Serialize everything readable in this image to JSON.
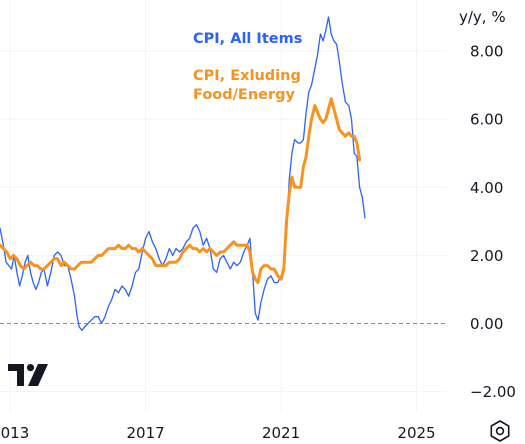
{
  "chart_data": {
    "type": "line",
    "y_unit_label": "y/y, %",
    "x_ticks": [
      {
        "label": "2013",
        "x": 2013.0
      },
      {
        "label": "2017",
        "x": 2017.0
      },
      {
        "label": "2021",
        "x": 2021.0
      },
      {
        "label": "2025",
        "x": 2025.0
      }
    ],
    "y_ticks": [
      {
        "label": "8.00",
        "y": 8
      },
      {
        "label": "6.00",
        "y": 6
      },
      {
        "label": "4.00",
        "y": 4
      },
      {
        "label": "2.00",
        "y": 2
      },
      {
        "label": "0.00",
        "y": 0
      },
      {
        "label": "−2.00",
        "y": -2
      }
    ],
    "xlim": [
      2012.7,
      2025.9
    ],
    "ylim": [
      -2.6,
      9.5
    ],
    "grid": true,
    "zero_line": "dashed",
    "legend": "top-center",
    "series": [
      {
        "name": "CPI, All Items",
        "color": "#2962ff",
        "points": [
          [
            2012.7,
            2.8
          ],
          [
            2012.8,
            2.3
          ],
          [
            2012.88,
            1.8
          ],
          [
            2012.96,
            1.7
          ],
          [
            2013.04,
            1.6
          ],
          [
            2013.12,
            2.0
          ],
          [
            2013.2,
            1.5
          ],
          [
            2013.28,
            1.1
          ],
          [
            2013.36,
            1.4
          ],
          [
            2013.44,
            1.8
          ],
          [
            2013.52,
            2.0
          ],
          [
            2013.6,
            1.5
          ],
          [
            2013.68,
            1.2
          ],
          [
            2013.76,
            1.0
          ],
          [
            2013.84,
            1.2
          ],
          [
            2013.92,
            1.5
          ],
          [
            2014.0,
            1.6
          ],
          [
            2014.1,
            1.1
          ],
          [
            2014.2,
            1.5
          ],
          [
            2014.3,
            2.0
          ],
          [
            2014.4,
            2.1
          ],
          [
            2014.5,
            2.0
          ],
          [
            2014.6,
            1.7
          ],
          [
            2014.7,
            1.7
          ],
          [
            2014.8,
            1.3
          ],
          [
            2014.9,
            0.8
          ],
          [
            2014.98,
            0.2
          ],
          [
            2015.04,
            -0.1
          ],
          [
            2015.12,
            -0.2
          ],
          [
            2015.2,
            -0.1
          ],
          [
            2015.3,
            0.0
          ],
          [
            2015.4,
            0.1
          ],
          [
            2015.5,
            0.2
          ],
          [
            2015.6,
            0.2
          ],
          [
            2015.7,
            0.0
          ],
          [
            2015.8,
            0.2
          ],
          [
            2015.9,
            0.5
          ],
          [
            2016.0,
            0.7
          ],
          [
            2016.1,
            1.0
          ],
          [
            2016.2,
            0.9
          ],
          [
            2016.3,
            1.1
          ],
          [
            2016.4,
            1.0
          ],
          [
            2016.5,
            0.8
          ],
          [
            2016.6,
            1.1
          ],
          [
            2016.7,
            1.5
          ],
          [
            2016.8,
            1.6
          ],
          [
            2016.9,
            2.1
          ],
          [
            2017.0,
            2.5
          ],
          [
            2017.1,
            2.7
          ],
          [
            2017.2,
            2.4
          ],
          [
            2017.3,
            2.2
          ],
          [
            2017.4,
            1.9
          ],
          [
            2017.5,
            1.7
          ],
          [
            2017.6,
            1.9
          ],
          [
            2017.7,
            2.2
          ],
          [
            2017.8,
            2.0
          ],
          [
            2017.9,
            2.2
          ],
          [
            2018.0,
            2.1
          ],
          [
            2018.1,
            2.2
          ],
          [
            2018.2,
            2.4
          ],
          [
            2018.3,
            2.5
          ],
          [
            2018.4,
            2.8
          ],
          [
            2018.5,
            2.9
          ],
          [
            2018.6,
            2.7
          ],
          [
            2018.7,
            2.3
          ],
          [
            2018.8,
            2.5
          ],
          [
            2018.9,
            2.2
          ],
          [
            2019.0,
            1.6
          ],
          [
            2019.1,
            1.5
          ],
          [
            2019.2,
            1.9
          ],
          [
            2019.3,
            2.0
          ],
          [
            2019.4,
            1.8
          ],
          [
            2019.5,
            1.6
          ],
          [
            2019.6,
            1.8
          ],
          [
            2019.7,
            1.7
          ],
          [
            2019.8,
            1.8
          ],
          [
            2019.9,
            2.1
          ],
          [
            2020.0,
            2.3
          ],
          [
            2020.08,
            2.5
          ],
          [
            2020.16,
            1.5
          ],
          [
            2020.24,
            0.3
          ],
          [
            2020.32,
            0.1
          ],
          [
            2020.4,
            0.6
          ],
          [
            2020.5,
            1.0
          ],
          [
            2020.6,
            1.3
          ],
          [
            2020.7,
            1.4
          ],
          [
            2020.8,
            1.2
          ],
          [
            2020.9,
            1.2
          ],
          [
            2021.0,
            1.4
          ],
          [
            2021.08,
            1.7
          ],
          [
            2021.16,
            2.6
          ],
          [
            2021.24,
            4.2
          ],
          [
            2021.32,
            5.0
          ],
          [
            2021.4,
            5.4
          ],
          [
            2021.5,
            5.3
          ],
          [
            2021.58,
            5.3
          ],
          [
            2021.66,
            5.4
          ],
          [
            2021.74,
            6.2
          ],
          [
            2021.82,
            6.8
          ],
          [
            2021.9,
            7.0
          ],
          [
            2022.0,
            7.5
          ],
          [
            2022.08,
            7.9
          ],
          [
            2022.16,
            8.5
          ],
          [
            2022.24,
            8.3
          ],
          [
            2022.32,
            8.6
          ],
          [
            2022.4,
            9.0
          ],
          [
            2022.48,
            8.5
          ],
          [
            2022.56,
            8.3
          ],
          [
            2022.64,
            8.2
          ],
          [
            2022.72,
            7.7
          ],
          [
            2022.8,
            7.1
          ],
          [
            2022.9,
            6.5
          ],
          [
            2023.0,
            6.4
          ],
          [
            2023.08,
            6.0
          ],
          [
            2023.16,
            5.0
          ],
          [
            2023.24,
            4.9
          ],
          [
            2023.32,
            4.0
          ],
          [
            2023.4,
            3.7
          ],
          [
            2023.48,
            3.1
          ]
        ]
      },
      {
        "name": "CPI, Exluding Food/Energy",
        "color": "#f7931e",
        "points": [
          [
            2012.7,
            2.3
          ],
          [
            2012.8,
            2.2
          ],
          [
            2012.9,
            2.1
          ],
          [
            2013.0,
            1.9
          ],
          [
            2013.1,
            2.0
          ],
          [
            2013.2,
            1.9
          ],
          [
            2013.3,
            1.7
          ],
          [
            2013.4,
            1.6
          ],
          [
            2013.5,
            1.7
          ],
          [
            2013.6,
            1.8
          ],
          [
            2013.7,
            1.7
          ],
          [
            2013.8,
            1.7
          ],
          [
            2013.9,
            1.6
          ],
          [
            2014.0,
            1.6
          ],
          [
            2014.1,
            1.7
          ],
          [
            2014.2,
            1.8
          ],
          [
            2014.3,
            1.9
          ],
          [
            2014.4,
            1.9
          ],
          [
            2014.5,
            1.7
          ],
          [
            2014.6,
            1.8
          ],
          [
            2014.7,
            1.7
          ],
          [
            2014.8,
            1.6
          ],
          [
            2014.9,
            1.6
          ],
          [
            2015.0,
            1.7
          ],
          [
            2015.1,
            1.8
          ],
          [
            2015.2,
            1.8
          ],
          [
            2015.3,
            1.8
          ],
          [
            2015.4,
            1.8
          ],
          [
            2015.5,
            1.9
          ],
          [
            2015.6,
            2.0
          ],
          [
            2015.7,
            2.0
          ],
          [
            2015.8,
            2.1
          ],
          [
            2015.9,
            2.2
          ],
          [
            2016.0,
            2.2
          ],
          [
            2016.1,
            2.2
          ],
          [
            2016.2,
            2.3
          ],
          [
            2016.3,
            2.2
          ],
          [
            2016.4,
            2.2
          ],
          [
            2016.5,
            2.3
          ],
          [
            2016.6,
            2.2
          ],
          [
            2016.7,
            2.2
          ],
          [
            2016.8,
            2.1
          ],
          [
            2016.9,
            2.2
          ],
          [
            2017.0,
            2.1
          ],
          [
            2017.1,
            2.0
          ],
          [
            2017.2,
            1.9
          ],
          [
            2017.3,
            1.7
          ],
          [
            2017.4,
            1.7
          ],
          [
            2017.5,
            1.7
          ],
          [
            2017.6,
            1.7
          ],
          [
            2017.7,
            1.8
          ],
          [
            2017.8,
            1.8
          ],
          [
            2017.9,
            1.8
          ],
          [
            2018.0,
            1.9
          ],
          [
            2018.1,
            2.1
          ],
          [
            2018.2,
            2.2
          ],
          [
            2018.3,
            2.3
          ],
          [
            2018.4,
            2.2
          ],
          [
            2018.5,
            2.2
          ],
          [
            2018.6,
            2.1
          ],
          [
            2018.7,
            2.2
          ],
          [
            2018.8,
            2.1
          ],
          [
            2018.9,
            2.2
          ],
          [
            2019.0,
            2.1
          ],
          [
            2019.1,
            2.0
          ],
          [
            2019.2,
            2.1
          ],
          [
            2019.3,
            2.1
          ],
          [
            2019.4,
            2.2
          ],
          [
            2019.5,
            2.3
          ],
          [
            2019.6,
            2.4
          ],
          [
            2019.7,
            2.3
          ],
          [
            2019.8,
            2.3
          ],
          [
            2019.9,
            2.3
          ],
          [
            2020.0,
            2.3
          ],
          [
            2020.08,
            2.1
          ],
          [
            2020.16,
            1.5
          ],
          [
            2020.24,
            1.3
          ],
          [
            2020.32,
            1.2
          ],
          [
            2020.4,
            1.6
          ],
          [
            2020.5,
            1.7
          ],
          [
            2020.6,
            1.7
          ],
          [
            2020.7,
            1.6
          ],
          [
            2020.8,
            1.6
          ],
          [
            2020.9,
            1.4
          ],
          [
            2021.0,
            1.3
          ],
          [
            2021.08,
            1.6
          ],
          [
            2021.16,
            3.0
          ],
          [
            2021.24,
            3.8
          ],
          [
            2021.32,
            4.3
          ],
          [
            2021.4,
            4.0
          ],
          [
            2021.5,
            4.0
          ],
          [
            2021.58,
            4.0
          ],
          [
            2021.66,
            4.6
          ],
          [
            2021.74,
            4.9
          ],
          [
            2021.82,
            5.5
          ],
          [
            2021.9,
            6.0
          ],
          [
            2022.0,
            6.4
          ],
          [
            2022.08,
            6.2
          ],
          [
            2022.16,
            6.0
          ],
          [
            2022.24,
            5.9
          ],
          [
            2022.32,
            6.0
          ],
          [
            2022.4,
            6.3
          ],
          [
            2022.48,
            6.6
          ],
          [
            2022.56,
            6.3
          ],
          [
            2022.64,
            6.0
          ],
          [
            2022.72,
            5.7
          ],
          [
            2022.8,
            5.6
          ],
          [
            2022.9,
            5.5
          ],
          [
            2023.0,
            5.6
          ],
          [
            2023.08,
            5.5
          ],
          [
            2023.16,
            5.5
          ],
          [
            2023.24,
            5.3
          ],
          [
            2023.32,
            4.8
          ]
        ]
      }
    ]
  },
  "logo": {
    "icon": "tradingview-logo-icon"
  },
  "toolbar": {
    "settings_icon": "gear-icon"
  }
}
